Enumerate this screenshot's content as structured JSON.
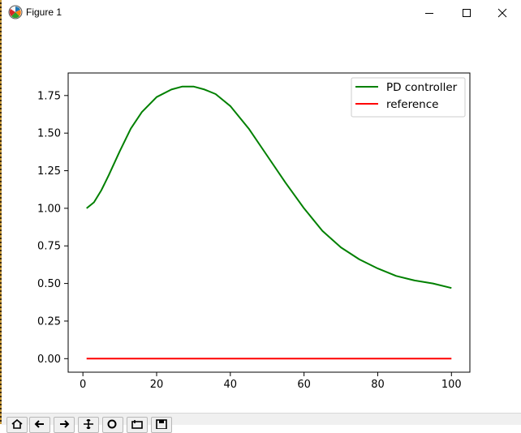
{
  "window": {
    "title": "Figure 1",
    "icons": [
      "matplotlib-logo-icon",
      "minimize-icon",
      "maximize-icon",
      "close-icon"
    ]
  },
  "toolbar": {
    "icons": [
      "home-icon",
      "back-icon",
      "forward-icon",
      "pan-icon",
      "zoom-icon",
      "configure-subplots-icon",
      "save-icon"
    ]
  },
  "chart_data": {
    "type": "line",
    "title": "",
    "xlabel": "",
    "ylabel": "",
    "xlim": [
      -4,
      105
    ],
    "ylim": [
      -0.09,
      1.9
    ],
    "x_ticks": [
      0,
      20,
      40,
      60,
      80,
      100
    ],
    "y_ticks": [
      0.0,
      0.25,
      0.5,
      0.75,
      1.0,
      1.25,
      1.5,
      1.75
    ],
    "x_tick_labels": [
      "0",
      "20",
      "40",
      "60",
      "80",
      "100"
    ],
    "y_tick_labels": [
      "0.00",
      "0.25",
      "0.50",
      "0.75",
      "1.00",
      "1.25",
      "1.50",
      "1.75"
    ],
    "grid": false,
    "legend_position": "top-right",
    "series": [
      {
        "name": "PD controller",
        "color": "#008000",
        "x": [
          1,
          3,
          5,
          7,
          10,
          13,
          16,
          20,
          24,
          27,
          30,
          33,
          36,
          40,
          45,
          50,
          55,
          60,
          65,
          70,
          75,
          80,
          85,
          90,
          95,
          100
        ],
        "y": [
          1.0,
          1.04,
          1.12,
          1.22,
          1.38,
          1.53,
          1.64,
          1.74,
          1.79,
          1.81,
          1.81,
          1.79,
          1.76,
          1.68,
          1.53,
          1.35,
          1.17,
          1.0,
          0.85,
          0.74,
          0.66,
          0.6,
          0.55,
          0.52,
          0.5,
          0.47
        ]
      },
      {
        "name": "reference",
        "color": "#ff0000",
        "x": [
          1,
          100
        ],
        "y": [
          0.0,
          0.0
        ]
      }
    ]
  }
}
